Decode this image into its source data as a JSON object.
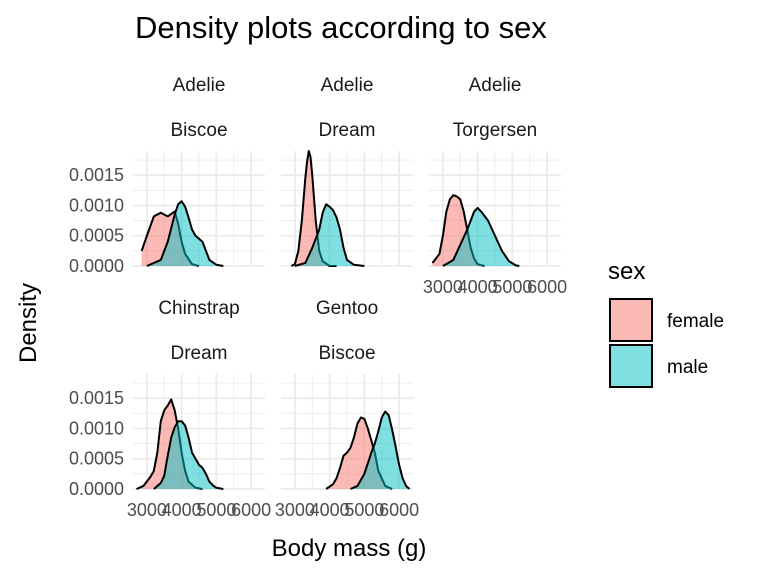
{
  "chart_data": {
    "type": "area",
    "title": "Density plots according to sex",
    "xlabel": "Body mass (g)",
    "ylabel": "Density",
    "xlim": [
      2600,
      6400
    ],
    "ylim": [
      0,
      0.0019
    ],
    "x_ticks": [
      3000,
      4000,
      5000,
      6000
    ],
    "x_tick_labels": [
      "3000",
      "4000",
      "5000",
      "6000"
    ],
    "y_ticks": [
      0,
      0.0005,
      0.001,
      0.0015
    ],
    "y_tick_labels": [
      "0.0000",
      "0.0005",
      "0.0010",
      "0.0015"
    ],
    "grid": true,
    "legend": {
      "title": "sex",
      "position": "right",
      "entries": [
        {
          "label": "female",
          "color": "#F8766D"
        },
        {
          "label": "male",
          "color": "#00BFC4"
        }
      ]
    },
    "panels": [
      {
        "species": "Adelie",
        "island": "Biscoe",
        "series": [
          {
            "name": "female",
            "x": [
              2850,
              3000,
              3200,
              3400,
              3600,
              3700,
              3800,
              3900,
              4000,
              4100,
              4300,
              4500
            ],
            "y": [
              0.00025,
              0.0005,
              0.00082,
              0.00088,
              0.00082,
              0.00086,
              0.0009,
              0.0007,
              0.0004,
              0.0002,
              3e-05,
              0
            ]
          },
          {
            "name": "male",
            "x": [
              3000,
              3400,
              3600,
              3800,
              3900,
              4000,
              4100,
              4200,
              4300,
              4400,
              4500,
              4600,
              4700,
              4800,
              5000,
              5200
            ],
            "y": [
              0,
              0.0001,
              0.0004,
              0.00085,
              0.00102,
              0.00107,
              0.00098,
              0.0008,
              0.0006,
              0.0005,
              0.00045,
              0.0004,
              0.00025,
              0.0001,
              2e-05,
              0
            ]
          }
        ]
      },
      {
        "species": "Adelie",
        "island": "Dream",
        "series": [
          {
            "name": "female",
            "x": [
              2900,
              3000,
              3100,
              3200,
              3300,
              3350,
              3400,
              3450,
              3500,
              3600,
              3700,
              3800,
              4000,
              4200
            ],
            "y": [
              0,
              3e-05,
              0.00025,
              0.00075,
              0.00145,
              0.00172,
              0.0019,
              0.0018,
              0.0015,
              0.00075,
              0.00025,
              8e-05,
              0,
              0
            ]
          },
          {
            "name": "male",
            "x": [
              3000,
              3300,
              3500,
              3700,
              3800,
              3900,
              4000,
              4100,
              4200,
              4300,
              4400,
              4500,
              4700,
              5000
            ],
            "y": [
              0,
              5e-05,
              0.0003,
              0.0006,
              0.00088,
              0.00102,
              0.00098,
              0.00092,
              0.0008,
              0.0006,
              0.0003,
              0.0001,
              2e-05,
              0
            ]
          }
        ]
      },
      {
        "species": "Adelie",
        "island": "Torgersen",
        "series": [
          {
            "name": "female",
            "x": [
              2700,
              2900,
              3000,
              3100,
              3200,
              3300,
              3400,
              3500,
              3600,
              3700,
              3800,
              3900,
              4000,
              4200
            ],
            "y": [
              5e-05,
              0.0002,
              0.0005,
              0.0009,
              0.0011,
              0.00117,
              0.00115,
              0.0011,
              0.0009,
              0.0006,
              0.0003,
              0.00012,
              3e-05,
              0
            ]
          },
          {
            "name": "male",
            "x": [
              3000,
              3300,
              3500,
              3700,
              3900,
              4000,
              4100,
              4300,
              4500,
              4700,
              4900,
              5100,
              5200
            ],
            "y": [
              0,
              0.0001,
              0.00035,
              0.0006,
              0.0009,
              0.00096,
              0.0009,
              0.00075,
              0.0005,
              0.00025,
              8e-05,
              1e-05,
              0
            ]
          }
        ]
      },
      {
        "species": "Chinstrap",
        "island": "Dream",
        "series": [
          {
            "name": "female",
            "x": [
              2700,
              2900,
              3100,
              3200,
              3300,
              3400,
              3500,
              3600,
              3700,
              3800,
              3900,
              4000,
              4100,
              4200,
              4400,
              4600
            ],
            "y": [
              0,
              5e-05,
              0.0002,
              0.0003,
              0.0006,
              0.00112,
              0.0013,
              0.00138,
              0.00148,
              0.0013,
              0.001,
              0.0006,
              0.0003,
              0.00012,
              2e-05,
              0
            ]
          },
          {
            "name": "male",
            "x": [
              3200,
              3400,
              3500,
              3600,
              3700,
              3800,
              3900,
              4000,
              4100,
              4200,
              4300,
              4400,
              4500,
              4600,
              4700,
              4800,
              4900,
              5000,
              5200
            ],
            "y": [
              0,
              0.0001,
              0.00022,
              0.00055,
              0.00085,
              0.00102,
              0.00112,
              0.00112,
              0.00105,
              0.00085,
              0.0006,
              0.0005,
              0.0004,
              0.00035,
              0.00025,
              0.00012,
              6e-05,
              2e-05,
              0
            ]
          }
        ]
      },
      {
        "species": "Gentoo",
        "island": "Biscoe",
        "series": [
          {
            "name": "female",
            "x": [
              3900,
              4100,
              4200,
              4300,
              4400,
              4500,
              4600,
              4700,
              4800,
              4900,
              5000,
              5100,
              5200,
              5300,
              5400,
              5600,
              5800
            ],
            "y": [
              0,
              8e-05,
              0.00018,
              0.00035,
              0.00055,
              0.0006,
              0.00068,
              0.00085,
              0.00108,
              0.00118,
              0.00116,
              0.001,
              0.0008,
              0.0006,
              0.0003,
              5e-05,
              0
            ]
          },
          {
            "name": "male",
            "x": [
              4600,
              4800,
              5000,
              5200,
              5300,
              5400,
              5500,
              5600,
              5700,
              5800,
              5900,
              6000,
              6100,
              6200,
              6300
            ],
            "y": [
              0,
              5e-05,
              0.00025,
              0.0006,
              0.00075,
              0.00095,
              0.00118,
              0.00128,
              0.00122,
              0.00098,
              0.0007,
              0.0004,
              0.00018,
              5e-05,
              0
            ]
          }
        ]
      }
    ]
  }
}
